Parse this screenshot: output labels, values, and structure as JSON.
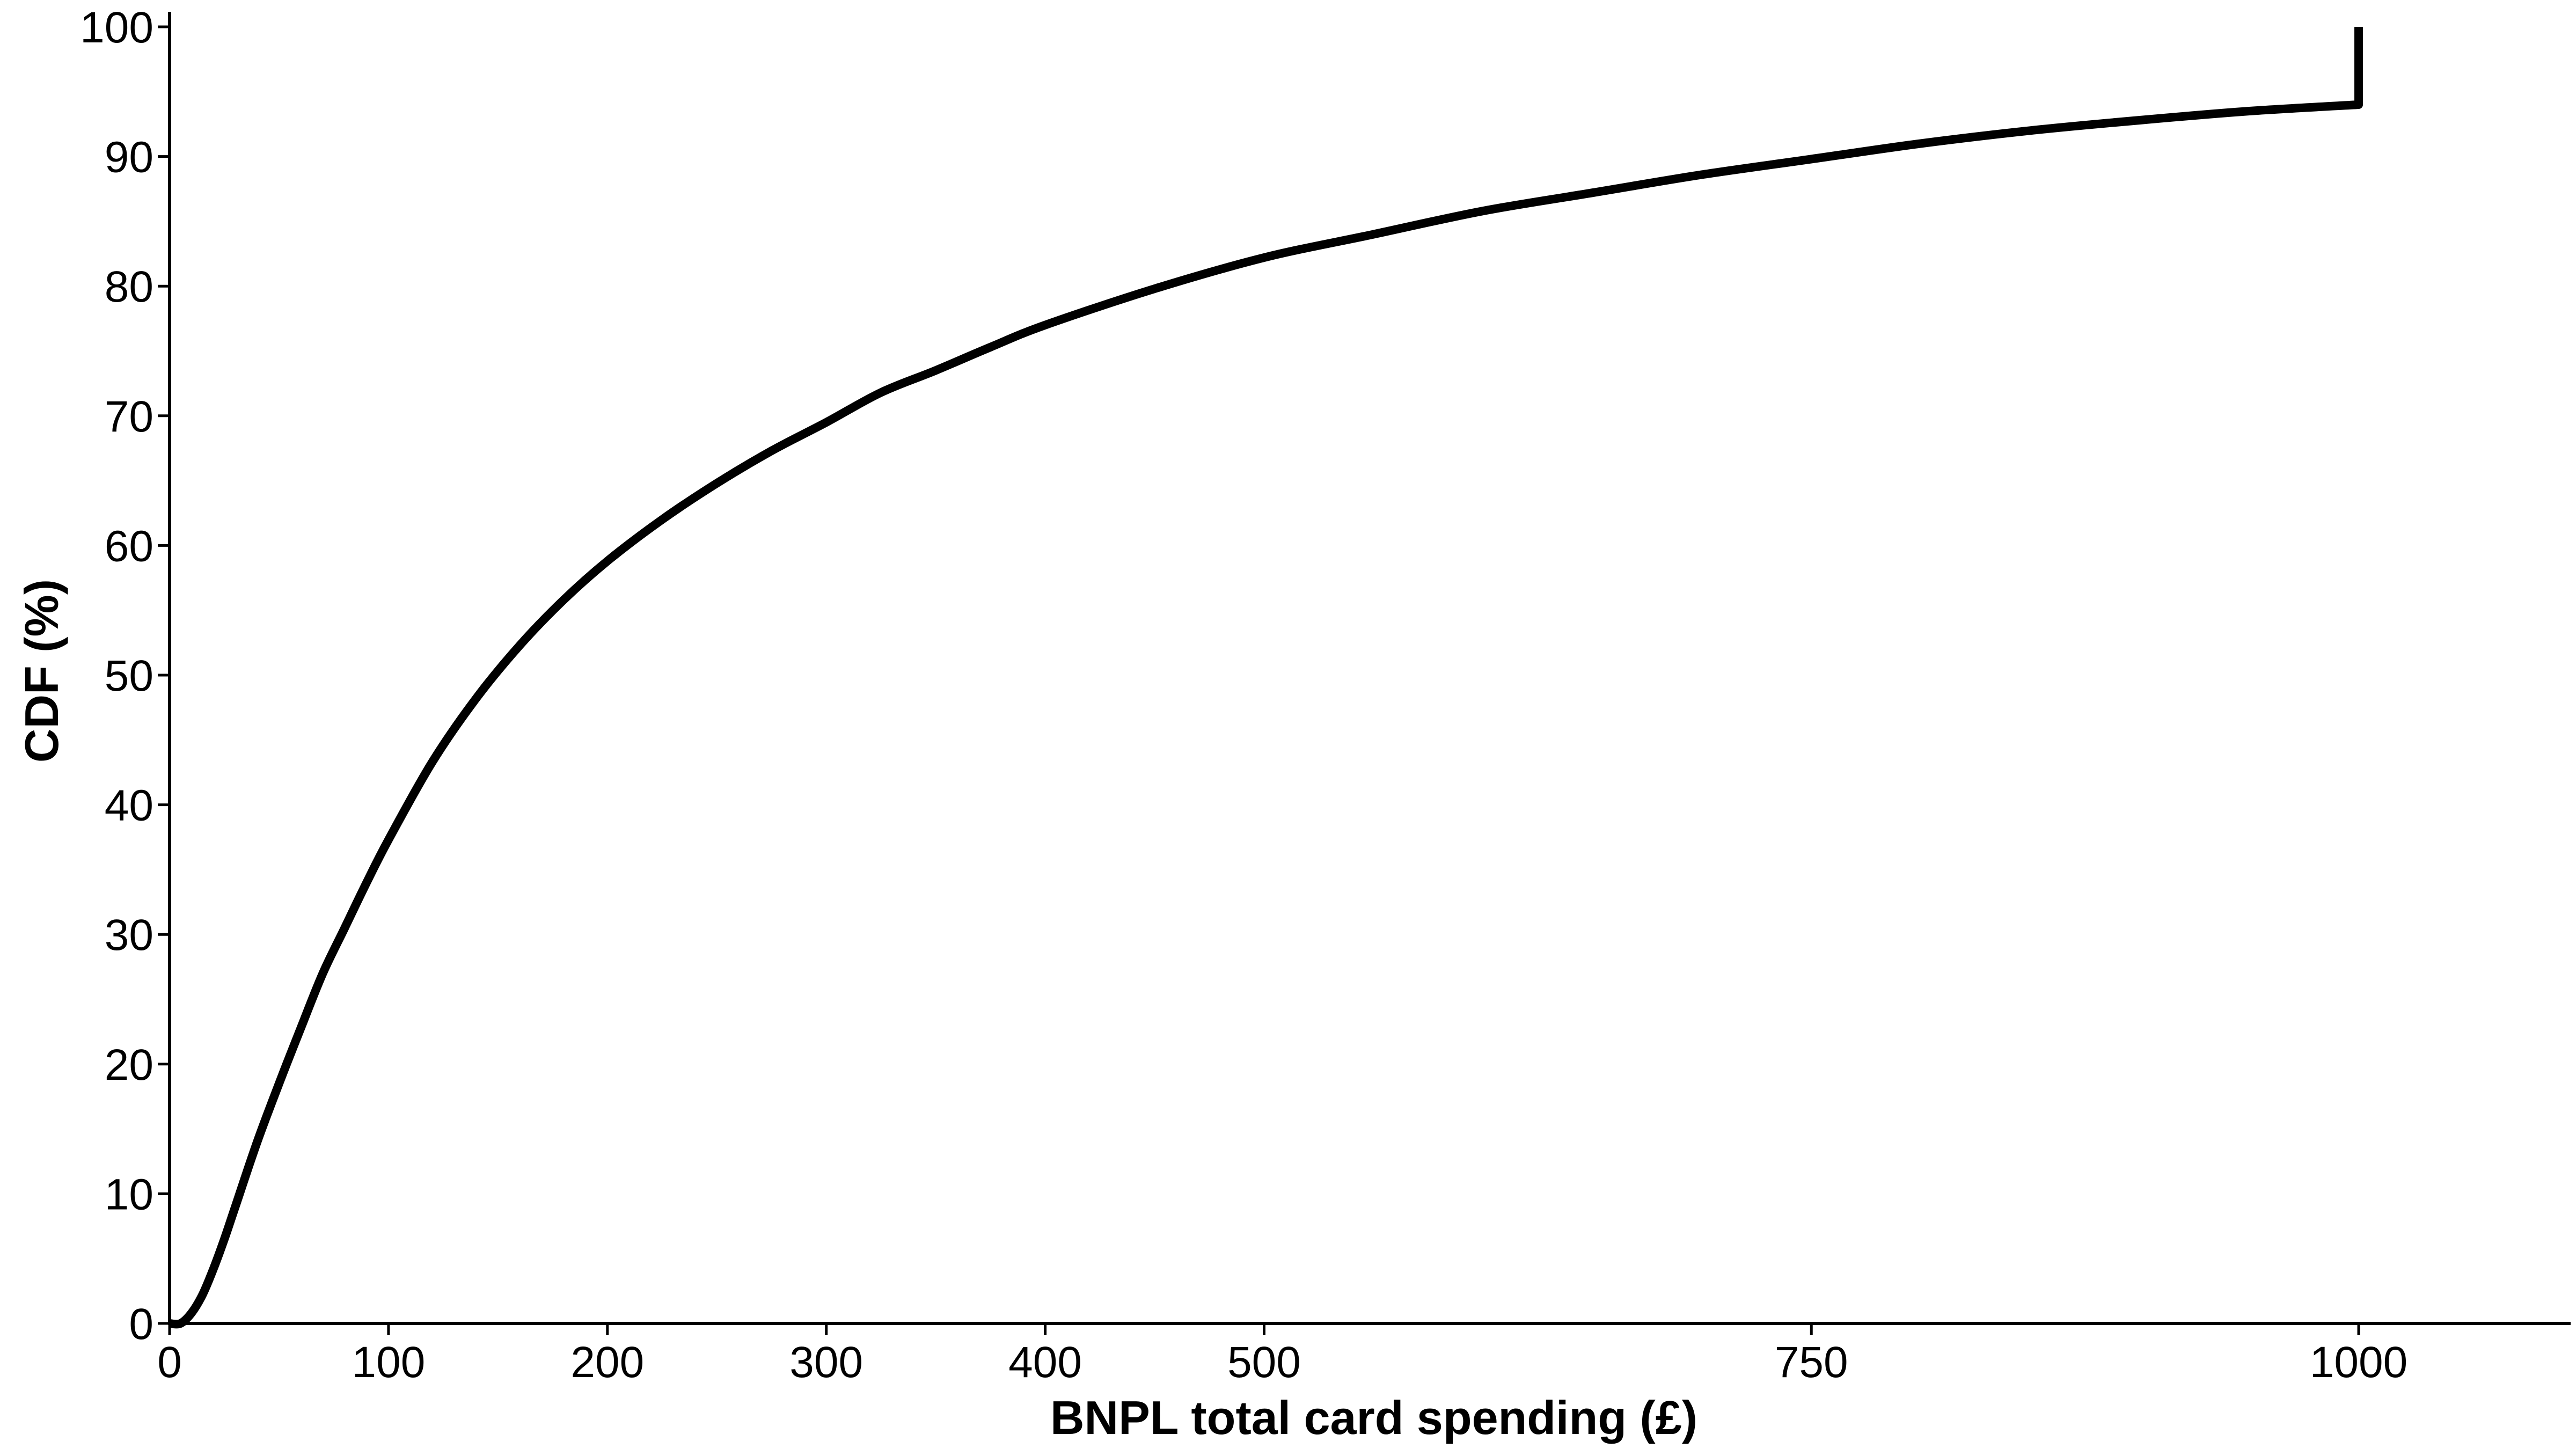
{
  "chart_data": {
    "type": "line",
    "xlabel": "BNPL total card spending (£)",
    "ylabel": "CDF (%)",
    "xlim": [
      0,
      1100
    ],
    "ylim": [
      0,
      100
    ],
    "x_ticks": [
      0,
      100,
      200,
      300,
      400,
      500,
      750,
      1000
    ],
    "y_ticks": [
      0,
      10,
      20,
      30,
      40,
      50,
      60,
      70,
      80,
      90,
      100
    ],
    "grid": false,
    "legend": "none",
    "series": [
      {
        "color": "#000000",
        "points": [
          [
            0,
            0
          ],
          [
            5,
            0
          ],
          [
            10,
            0.8
          ],
          [
            15,
            2.2
          ],
          [
            20,
            4.2
          ],
          [
            25,
            6.5
          ],
          [
            30,
            9
          ],
          [
            40,
            14
          ],
          [
            50,
            18.5
          ],
          [
            60,
            22.8
          ],
          [
            70,
            27
          ],
          [
            80,
            30.5
          ],
          [
            90,
            34
          ],
          [
            100,
            37.3
          ],
          [
            120,
            43.3
          ],
          [
            140,
            48.2
          ],
          [
            160,
            52.3
          ],
          [
            180,
            55.8
          ],
          [
            200,
            58.8
          ],
          [
            225,
            62
          ],
          [
            250,
            64.8
          ],
          [
            275,
            67.3
          ],
          [
            300,
            69.5
          ],
          [
            325,
            71.8
          ],
          [
            350,
            73.5
          ],
          [
            375,
            75.3
          ],
          [
            400,
            77
          ],
          [
            450,
            79.8
          ],
          [
            500,
            82.2
          ],
          [
            550,
            84
          ],
          [
            600,
            85.8
          ],
          [
            650,
            87.2
          ],
          [
            700,
            88.6
          ],
          [
            750,
            89.8
          ],
          [
            800,
            91
          ],
          [
            850,
            92
          ],
          [
            900,
            92.8
          ],
          [
            950,
            93.5
          ],
          [
            1000,
            94
          ],
          [
            1000,
            100
          ]
        ]
      }
    ]
  }
}
